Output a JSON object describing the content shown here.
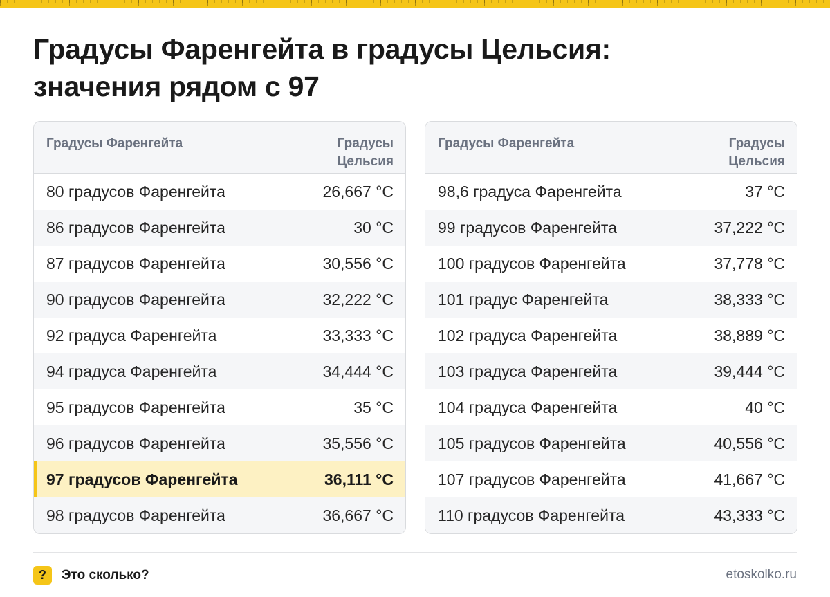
{
  "title": {
    "line1": "Градусы Фаренгейта в градусы Цельсия:",
    "line2": "значения рядом с 97"
  },
  "table_header": {
    "fahrenheit": "Градусы Фаренгейта",
    "celsius": "Градусы Цельсия"
  },
  "left_table": [
    {
      "f": "80 градусов Фаренгейта",
      "c": "26,667 °C"
    },
    {
      "f": "86 градусов Фаренгейта",
      "c": "30 °C"
    },
    {
      "f": "87 градусов Фаренгейта",
      "c": "30,556 °C"
    },
    {
      "f": "90 градусов Фаренгейта",
      "c": "32,222 °C"
    },
    {
      "f": "92 градуса Фаренгейта",
      "c": "33,333 °C"
    },
    {
      "f": "94 градуса Фаренгейта",
      "c": "34,444 °C"
    },
    {
      "f": "95 градусов Фаренгейта",
      "c": "35 °C"
    },
    {
      "f": "96 градусов Фаренгейта",
      "c": "35,556 °C"
    },
    {
      "f": "97 градусов Фаренгейта",
      "c": "36,111 °C",
      "highlighted": true
    },
    {
      "f": "98 градусов Фаренгейта",
      "c": "36,667 °C"
    }
  ],
  "right_table": [
    {
      "f": "98,6 градуса Фаренгейта",
      "c": "37 °C"
    },
    {
      "f": "99 градусов Фаренгейта",
      "c": "37,222 °C"
    },
    {
      "f": "100 градусов Фаренгейта",
      "c": "37,778 °C"
    },
    {
      "f": "101 градус Фаренгейта",
      "c": "38,333 °C"
    },
    {
      "f": "102 градуса Фаренгейта",
      "c": "38,889 °C"
    },
    {
      "f": "103 градуса Фаренгейта",
      "c": "39,444 °C"
    },
    {
      "f": "104 градуса Фаренгейта",
      "c": "40 °C"
    },
    {
      "f": "105 градусов Фаренгейта",
      "c": "40,556 °C"
    },
    {
      "f": "107 градусов Фаренгейта",
      "c": "41,667 °C"
    },
    {
      "f": "110 градусов Фаренгейта",
      "c": "43,333 °C"
    }
  ],
  "footer": {
    "icon_glyph": "?",
    "brand": "Это сколько?",
    "site": "etoskolko.ru"
  },
  "colors": {
    "accent": "#f5c518",
    "highlight_row": "#fdf1c3",
    "alt_row": "#f5f6f8",
    "header_text": "#6b7280"
  }
}
